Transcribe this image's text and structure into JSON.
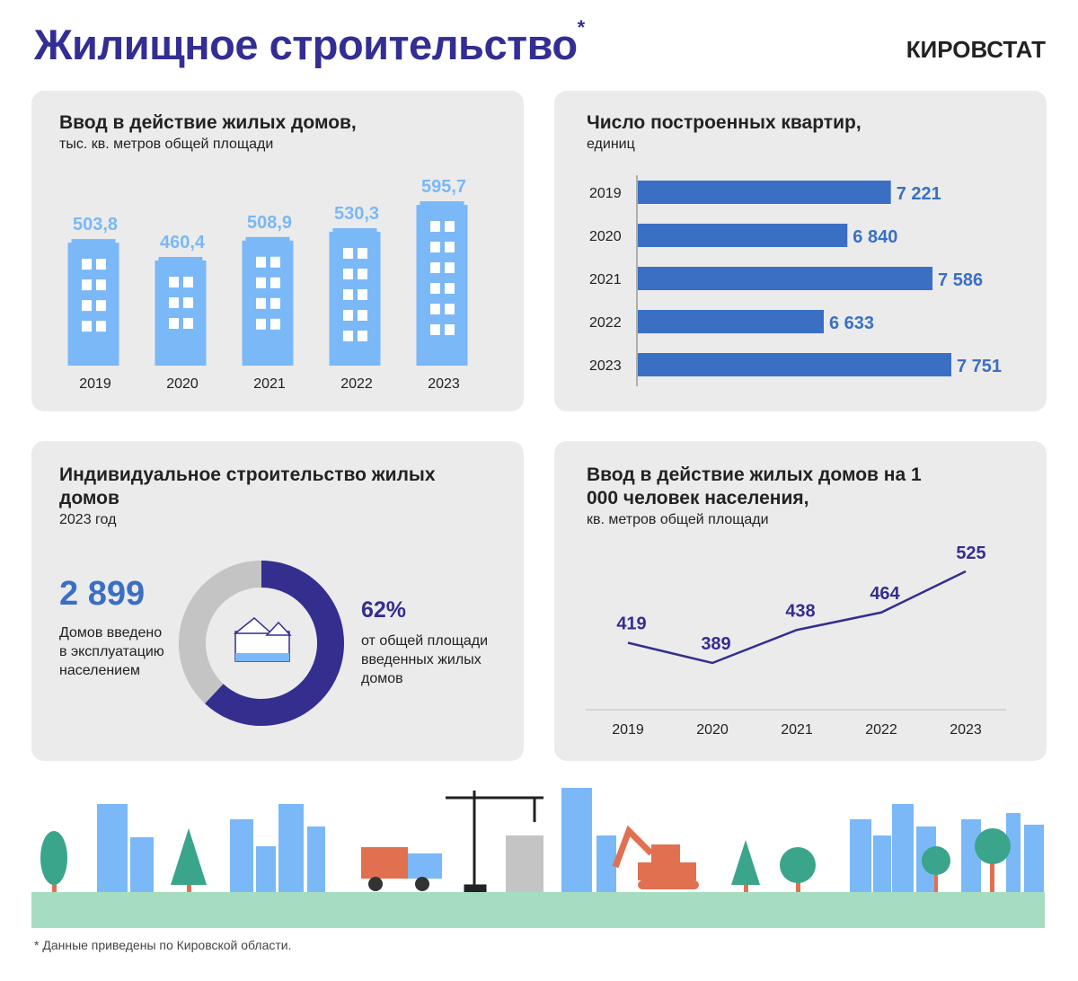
{
  "header": {
    "title": "Жилищное строительство",
    "title_mark": "*",
    "brand": "КИРОВСТАТ"
  },
  "colors": {
    "title": "#332e93",
    "light_blue": "#7ab8f7",
    "bar_blue": "#3a6fc4",
    "dark_purple": "#342e8f",
    "gray": "#c4c4c4",
    "panel": "#ebebeb",
    "ground": "#a6ddc0"
  },
  "chart_data": [
    {
      "type": "bar",
      "title": "Ввод в действие жилых домов,",
      "subtitle": "тыс. кв. метров общей площади",
      "categories": [
        "2019",
        "2020",
        "2021",
        "2022",
        "2023"
      ],
      "values": [
        503.8,
        460.4,
        508.9,
        530.3,
        595.7
      ],
      "value_labels": [
        "503,8",
        "460,4",
        "508,9",
        "530,3",
        "595,7"
      ],
      "bar_style": "building-icons"
    },
    {
      "type": "bar",
      "orientation": "horizontal",
      "title": "Число построенных квартир,",
      "subtitle": "единиц",
      "categories": [
        "2019",
        "2020",
        "2021",
        "2022",
        "2023"
      ],
      "values": [
        7221,
        6840,
        7586,
        6633,
        7751
      ],
      "value_labels": [
        "7 221",
        "6 840",
        "7 586",
        "6 633",
        "7 751"
      ]
    },
    {
      "type": "pie",
      "variant": "donut",
      "title": "Индивидуальное строительство жилых домов",
      "subtitle": "2023 год",
      "values": [
        62,
        38
      ],
      "center_icon": "houses-icon",
      "highlight": {
        "value": "62%",
        "text": "от общей площади введенных жилых домов"
      },
      "side_stat": {
        "value": "2 899",
        "text": "Домов введено в эксплуатацию населением"
      }
    },
    {
      "type": "line",
      "title": "Ввод в действие жилых домов на 1 000 человек населения,",
      "subtitle": "кв. метров общей площади",
      "categories": [
        "2019",
        "2020",
        "2021",
        "2022",
        "2023"
      ],
      "values": [
        419,
        389,
        438,
        464,
        525
      ],
      "value_labels": [
        "419",
        "389",
        "438",
        "464",
        "525"
      ]
    }
  ],
  "footnote": "* Данные приведены по Кировской области."
}
